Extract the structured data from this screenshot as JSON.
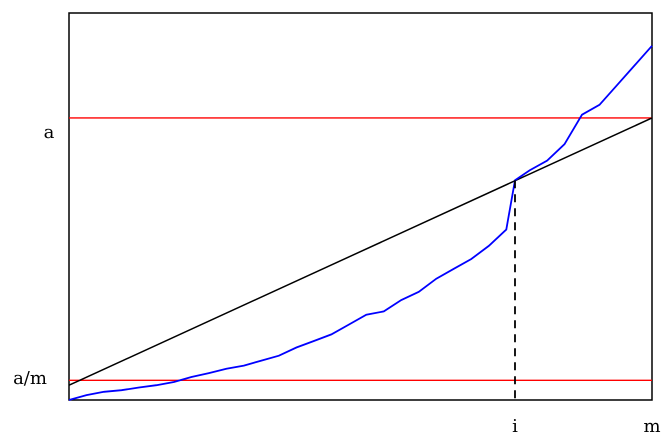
{
  "chart_data": {
    "type": "line",
    "title": "",
    "xlabel": "",
    "ylabel": "",
    "xlim": [
      0,
      1
    ],
    "ylim": [
      0,
      1.18
    ],
    "grid": false,
    "y_tick_labels": [
      {
        "label": "a",
        "value": 0.86
      },
      {
        "label": "a/m",
        "value": 0.06
      }
    ],
    "x_tick_labels": [
      {
        "label": "i",
        "value": 0.765
      },
      {
        "label": "m",
        "value": 1.0
      }
    ],
    "reference_lines": [
      {
        "orientation": "horizontal",
        "value": 0.86,
        "color": "#ff0000"
      },
      {
        "orientation": "horizontal",
        "value": 0.06,
        "color": "#ff0000"
      }
    ],
    "threshold_line": {
      "from": [
        0,
        0.045
      ],
      "to": [
        1,
        0.86
      ],
      "color": "#000000"
    },
    "crossing_marker": {
      "x": 0.765,
      "y_top": 0.67,
      "y_bottom": 0,
      "style": "dashed",
      "color": "#000000"
    },
    "series": [
      {
        "color": "#0000ff",
        "x": [
          0.0,
          0.03,
          0.06,
          0.09,
          0.12,
          0.15,
          0.18,
          0.21,
          0.24,
          0.27,
          0.3,
          0.33,
          0.36,
          0.39,
          0.42,
          0.45,
          0.48,
          0.51,
          0.54,
          0.57,
          0.6,
          0.63,
          0.66,
          0.69,
          0.72,
          0.75,
          0.765,
          0.79,
          0.82,
          0.85,
          0.88,
          0.91,
          0.94,
          0.97,
          1.0
        ],
        "y": [
          0.0,
          0.015,
          0.025,
          0.03,
          0.038,
          0.045,
          0.055,
          0.07,
          0.082,
          0.095,
          0.105,
          0.12,
          0.135,
          0.16,
          0.18,
          0.2,
          0.23,
          0.26,
          0.27,
          0.305,
          0.33,
          0.37,
          0.4,
          0.43,
          0.47,
          0.52,
          0.67,
          0.7,
          0.73,
          0.78,
          0.87,
          0.9,
          0.96,
          1.02,
          1.08
        ]
      }
    ]
  },
  "colors": {
    "frame": "#000000",
    "series": "#0000ff",
    "reference": "#ff0000",
    "threshold": "#000000"
  }
}
